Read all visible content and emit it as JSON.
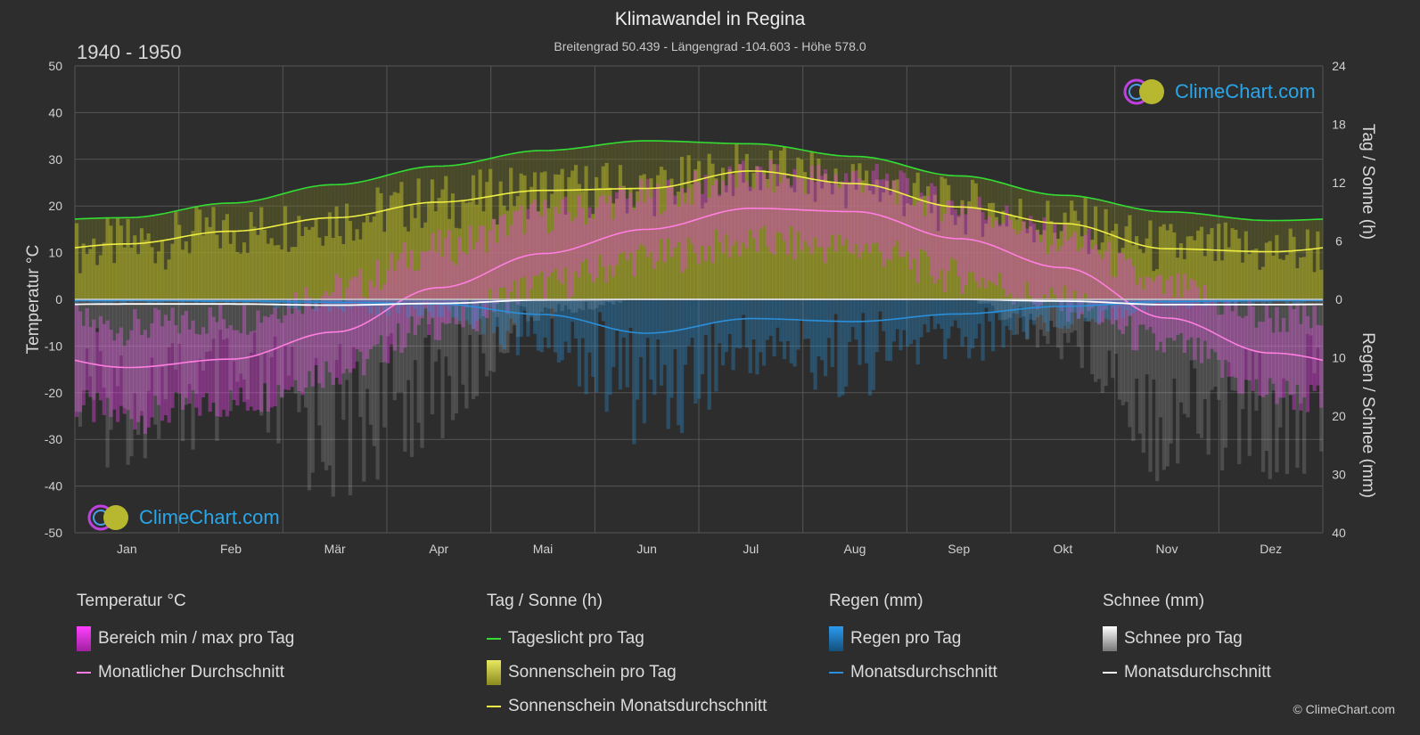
{
  "header": {
    "title": "Klimawandel in Regina",
    "subtitle": "Breitengrad 50.439 - Längengrad -104.603 - Höhe 578.0",
    "period": "1940 - 1950"
  },
  "logo": {
    "text": "ClimeChart.com"
  },
  "copyright": "© ClimeChart.com",
  "colors": {
    "background": "#2d2d2d",
    "grid": "#555555",
    "temp_range": "#e040e0",
    "temp_avg": "#ff7ee0",
    "daylight": "#33dd33",
    "sunshine_fill": "#b5b52a",
    "sunshine_avg": "#eeee44",
    "rain": "#2a8fd8",
    "rain_avg": "#2a8fd8",
    "snow": "#bbbbbb",
    "snow_avg": "#ffffff"
  },
  "chart_data": {
    "type": "line",
    "title": "Klimawandel in Regina",
    "categories": [
      "Jan",
      "Feb",
      "Mär",
      "Apr",
      "Mai",
      "Jun",
      "Jul",
      "Aug",
      "Sep",
      "Okt",
      "Nov",
      "Dez"
    ],
    "y_left": {
      "label": "Temperatur °C",
      "range": [
        -50,
        50
      ],
      "ticks": [
        "50",
        "40",
        "30",
        "20",
        "10",
        "0",
        "-10",
        "-20",
        "-30",
        "-40",
        "-50"
      ]
    },
    "y_right_top": {
      "label": "Tag / Sonne (h)",
      "range": [
        0,
        24
      ],
      "ticks": [
        "24",
        "18",
        "12",
        "6",
        "0"
      ]
    },
    "y_right_bottom": {
      "label": "Regen / Schnee (mm)",
      "range": [
        0,
        40
      ],
      "ticks": [
        "10",
        "20",
        "30",
        "40"
      ]
    },
    "grid": true,
    "series": [
      {
        "name": "Tageslicht pro Tag",
        "unit": "h",
        "values": [
          8.4,
          9.9,
          11.8,
          13.7,
          15.3,
          16.3,
          16.0,
          14.7,
          12.7,
          10.7,
          9.0,
          8.1
        ]
      },
      {
        "name": "Sonnenschein Monatsdurchschnitt",
        "unit": "h",
        "values": [
          5.7,
          7.0,
          8.4,
          10.0,
          11.2,
          11.4,
          13.2,
          11.9,
          9.5,
          7.8,
          5.2,
          4.9
        ]
      },
      {
        "name": "Monatlicher Durchschnitt",
        "unit": "°C",
        "values": [
          -14.6,
          -12.8,
          -7.0,
          2.5,
          9.8,
          15.0,
          19.5,
          18.8,
          13.0,
          6.8,
          -4.0,
          -11.5
        ]
      },
      {
        "name": "Regen Monatsdurchschnitt",
        "unit": "mm",
        "values": [
          0.2,
          0.3,
          0.5,
          0.8,
          2.6,
          5.8,
          3.3,
          3.8,
          2.5,
          1.2,
          0.4,
          0.2
        ]
      },
      {
        "name": "Schnee Monatsdurchschnitt",
        "unit": "mm",
        "values": [
          0.8,
          0.8,
          1.0,
          0.7,
          0.1,
          0.0,
          0.0,
          0.0,
          0.0,
          0.3,
          0.9,
          0.9
        ]
      },
      {
        "name": "Bereich min / max pro Tag",
        "unit": "°C",
        "min": [
          -25,
          -22,
          -15,
          -5,
          3,
          9,
          12,
          11,
          5,
          -1,
          -10,
          -20
        ],
        "max": [
          -6,
          -4,
          2,
          11,
          18,
          22,
          26,
          26,
          20,
          13,
          2,
          -4
        ]
      }
    ]
  },
  "legend": {
    "temperature": {
      "title": "Temperatur °C",
      "items": [
        "Bereich min / max pro Tag",
        "Monatlicher Durchschnitt"
      ]
    },
    "sun": {
      "title": "Tag / Sonne (h)",
      "items": [
        "Tageslicht pro Tag",
        "Sonnenschein pro Tag",
        "Sonnenschein Monatsdurchschnitt"
      ]
    },
    "rain": {
      "title": "Regen (mm)",
      "items": [
        "Regen pro Tag",
        "Monatsdurchschnitt"
      ]
    },
    "snow": {
      "title": "Schnee (mm)",
      "items": [
        "Schnee pro Tag",
        "Monatsdurchschnitt"
      ]
    }
  }
}
